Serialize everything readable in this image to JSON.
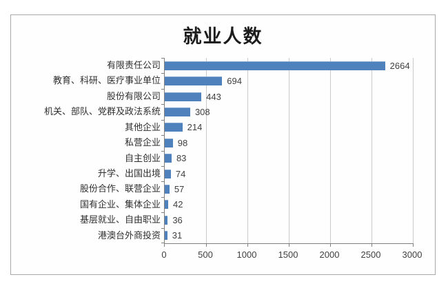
{
  "chart_data": {
    "type": "bar",
    "orientation": "horizontal",
    "title": "就业人数",
    "categories": [
      "有限责任公司",
      "教育、科研、医疗事业单位",
      "股份有限公司",
      "机关、部队、党群及政法系统",
      "其他企业",
      "私营企业",
      "自主创业",
      "升学、出国出境",
      "股份合作、联营企业",
      "国有企业、集体企业",
      "基层就业、自由职业",
      "港澳台外商投资"
    ],
    "values": [
      2664,
      694,
      443,
      308,
      214,
      98,
      83,
      74,
      57,
      42,
      36,
      31
    ],
    "data_labels_shown": true,
    "xlabel": "",
    "ylabel": "",
    "xlim": [
      0,
      3000
    ],
    "xticks": [
      0,
      500,
      1000,
      1500,
      2000,
      2500,
      3000
    ],
    "grid": "vertical",
    "legend": "none",
    "bar_color": "#4f81bd",
    "gridline_color": "#c9c9c9",
    "axis_color": "#7f7f7f",
    "text_color": "#404040"
  }
}
